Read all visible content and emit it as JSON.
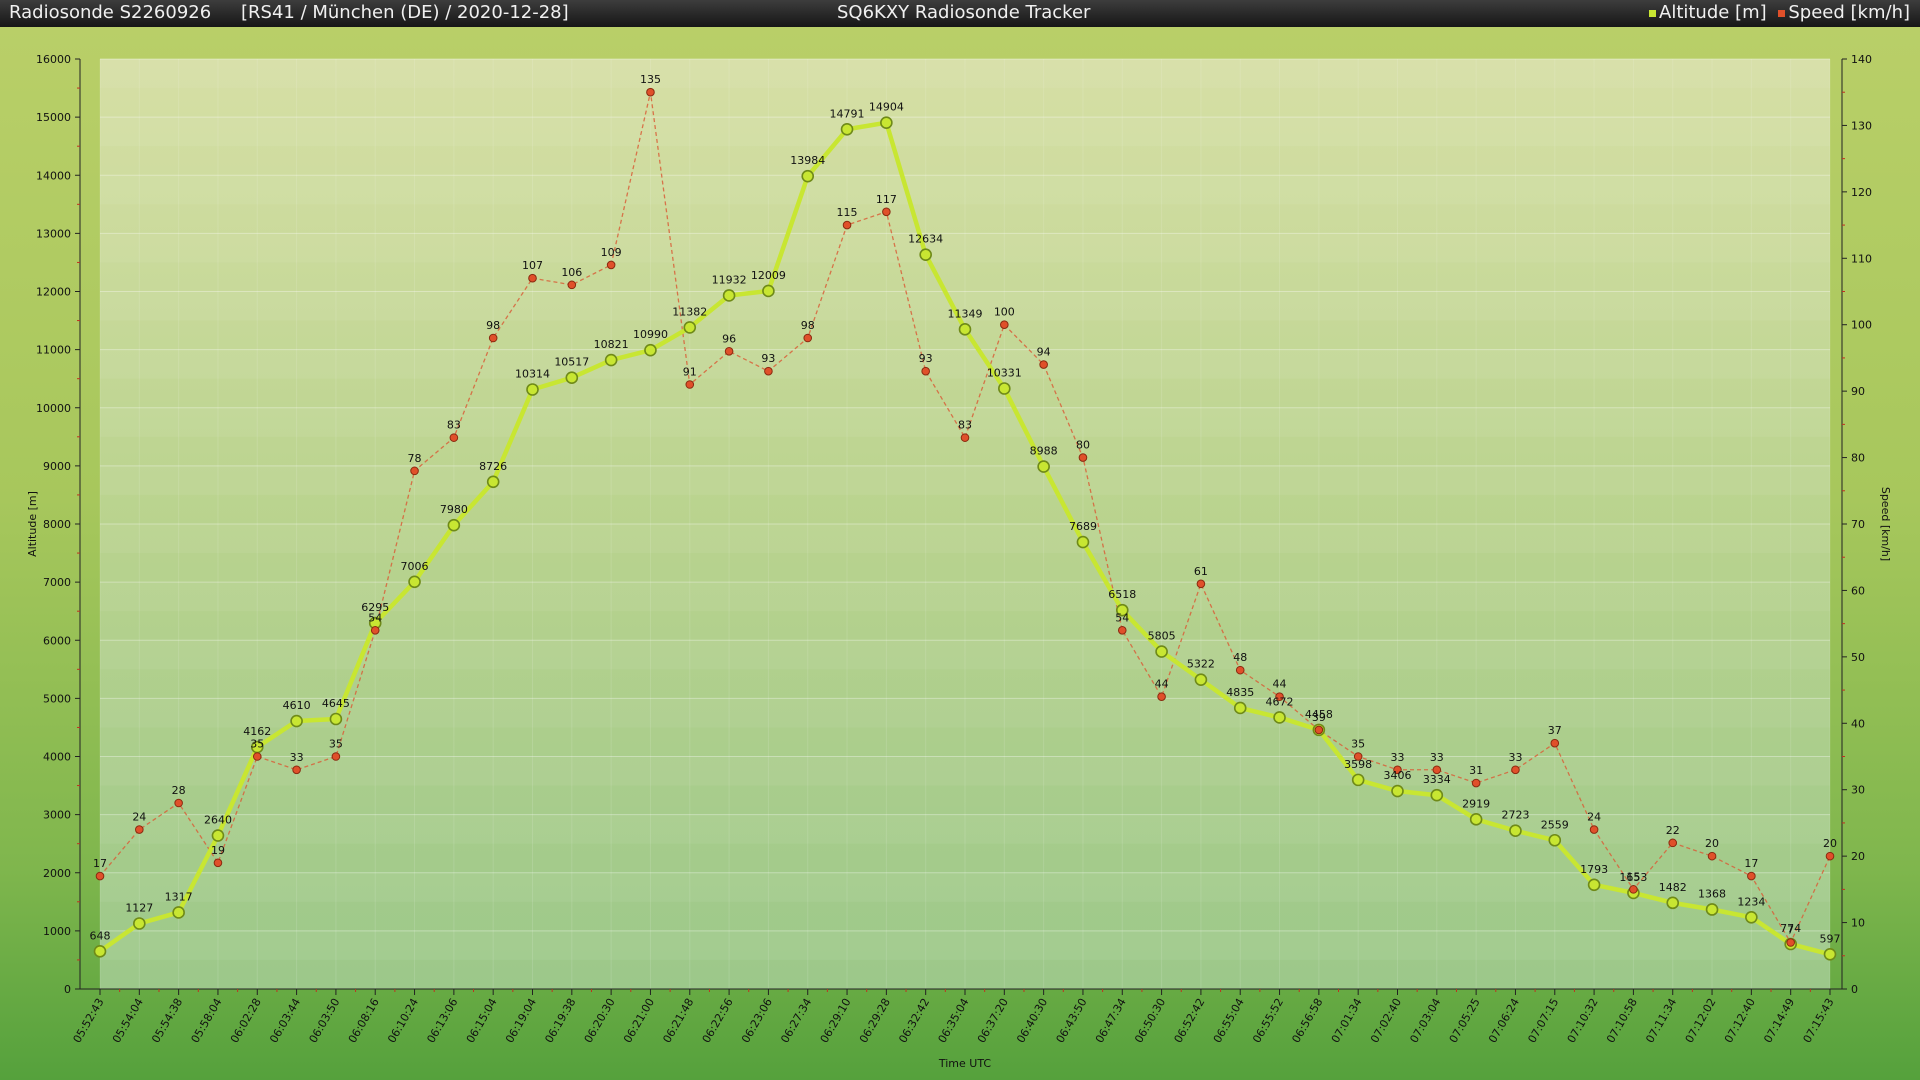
{
  "header": {
    "title": "Radiosonde S2260926",
    "location": "[RS41 / München (DE) / 2020-12-28]",
    "app": "SQ6KXY Radiosonde Tracker",
    "legend": [
      {
        "label": "Altitude [m]",
        "color": "#c8e632"
      },
      {
        "label": "Speed [km/h]",
        "color": "#e0502a"
      }
    ]
  },
  "chart_data": {
    "type": "line",
    "xlabel": "Time UTC",
    "ylabel": "Altitude [m]",
    "y2label": "Speed [km/h]",
    "ylim": [
      0,
      16000
    ],
    "y2lim": [
      0,
      140
    ],
    "yticks": [
      "0",
      "1000",
      "2000",
      "3000",
      "4000",
      "5000",
      "6000",
      "7000",
      "8000",
      "9000",
      "10000",
      "11000",
      "12000",
      "13000",
      "14000",
      "15000",
      "16000"
    ],
    "y2ticks": [
      "0",
      "10",
      "20",
      "30",
      "40",
      "50",
      "60",
      "70",
      "80",
      "90",
      "100",
      "110",
      "120",
      "130",
      "140"
    ],
    "grid": true,
    "categories": [
      "05:52:43",
      "05:54:04",
      "05:54:38",
      "05:58:04",
      "06:02:28",
      "06:03:44",
      "06:03:50",
      "06:08:16",
      "06:10:24",
      "06:13:06",
      "06:15:04",
      "06:19:04",
      "06:19:38",
      "06:20:30",
      "06:21:00",
      "06:21:48",
      "06:22:56",
      "06:23:06",
      "06:27:34",
      "06:29:10",
      "06:29:28",
      "06:32:42",
      "06:35:04",
      "06:37:20",
      "06:40:30",
      "06:43:50",
      "06:47:34",
      "06:50:30",
      "06:52:42",
      "06:55:04",
      "06:55:52",
      "06:56:58",
      "07:01:34",
      "07:02:40",
      "07:03:04",
      "07:05:25",
      "07:06:24",
      "07:07:15",
      "07:10:32",
      "07:10:58",
      "07:11:34",
      "07:12:02",
      "07:12:40",
      "07:14:49",
      "07:15:43"
    ],
    "series": [
      {
        "name": "Altitude [m]",
        "axis": "left",
        "color": "#c8e632",
        "values": [
          648,
          1127,
          1317,
          2640,
          4162,
          4610,
          4645,
          6295,
          7006,
          7980,
          8726,
          10314,
          10517,
          10821,
          10990,
          11382,
          11932,
          12009,
          13984,
          14791,
          14904,
          12634,
          11349,
          10331,
          8988,
          7689,
          6518,
          5805,
          5322,
          4835,
          4672,
          4458,
          3598,
          3406,
          3334,
          2919,
          2723,
          2559,
          1793,
          1653,
          1482,
          1368,
          1234,
          774,
          597
        ]
      },
      {
        "name": "Speed [km/h]",
        "axis": "right",
        "color": "#e0502a",
        "values": [
          17,
          24,
          28,
          19,
          35,
          33,
          35,
          54,
          78,
          83,
          98,
          107,
          106,
          109,
          135,
          91,
          96,
          93,
          98,
          115,
          117,
          93,
          83,
          100,
          94,
          80,
          54,
          44,
          61,
          48,
          44,
          39,
          35,
          33,
          33,
          31,
          33,
          37,
          24,
          15,
          22,
          20,
          17,
          7,
          20
        ]
      }
    ]
  }
}
